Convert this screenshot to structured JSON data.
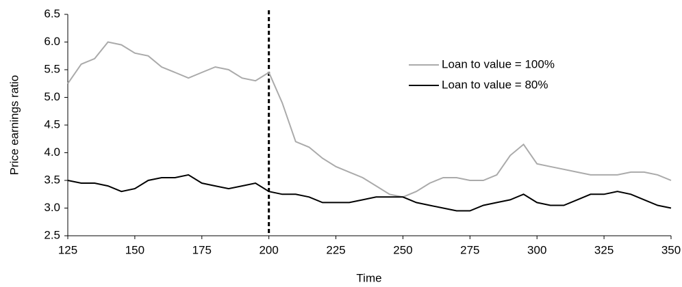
{
  "chart_data": {
    "type": "line",
    "xlabel": "Time",
    "ylabel": "Price earnings ratio",
    "x": [
      125,
      130,
      135,
      140,
      145,
      150,
      155,
      160,
      165,
      170,
      175,
      180,
      185,
      190,
      195,
      200,
      205,
      210,
      215,
      220,
      225,
      230,
      235,
      240,
      245,
      250,
      255,
      260,
      265,
      270,
      275,
      280,
      285,
      290,
      295,
      300,
      305,
      310,
      315,
      320,
      325,
      330,
      335,
      340,
      345,
      350
    ],
    "series": [
      {
        "name": "Loan to value = 100%",
        "color": "#aaaaaa",
        "values": [
          5.25,
          5.6,
          5.7,
          6.0,
          5.95,
          5.8,
          5.75,
          5.55,
          5.45,
          5.35,
          5.45,
          5.55,
          5.5,
          5.35,
          5.3,
          5.45,
          4.9,
          4.2,
          4.1,
          3.9,
          3.75,
          3.65,
          3.55,
          3.4,
          3.25,
          3.2,
          3.3,
          3.45,
          3.55,
          3.55,
          3.5,
          3.5,
          3.6,
          3.95,
          4.15,
          3.8,
          3.75,
          3.7,
          3.65,
          3.6,
          3.6,
          3.6,
          3.65,
          3.65,
          3.6,
          3.5
        ]
      },
      {
        "name": "Loan to value = 80%",
        "color": "#000000",
        "values": [
          3.5,
          3.45,
          3.45,
          3.4,
          3.3,
          3.35,
          3.5,
          3.55,
          3.55,
          3.6,
          3.45,
          3.4,
          3.35,
          3.4,
          3.45,
          3.3,
          3.25,
          3.25,
          3.2,
          3.1,
          3.1,
          3.1,
          3.15,
          3.2,
          3.2,
          3.2,
          3.1,
          3.05,
          3.0,
          2.95,
          2.95,
          3.05,
          3.1,
          3.15,
          3.25,
          3.1,
          3.05,
          3.05,
          3.15,
          3.25,
          3.25,
          3.3,
          3.25,
          3.15,
          3.05,
          3.0
        ]
      }
    ],
    "xlim": [
      125,
      350
    ],
    "xticks": [
      125,
      150,
      175,
      200,
      225,
      250,
      275,
      300,
      325,
      350
    ],
    "ylim": [
      2.5,
      6.5
    ],
    "yticks": [
      2.5,
      {
        "value": 3,
        "label": "3.0"
      },
      3.5,
      {
        "value": 4,
        "label": "4.0"
      },
      4.5,
      {
        "value": 5,
        "label": "5.0"
      },
      5.5,
      {
        "value": 6,
        "label": "6.0"
      },
      6.5
    ],
    "vline": 200,
    "legend": "upper right",
    "grid": false
  }
}
